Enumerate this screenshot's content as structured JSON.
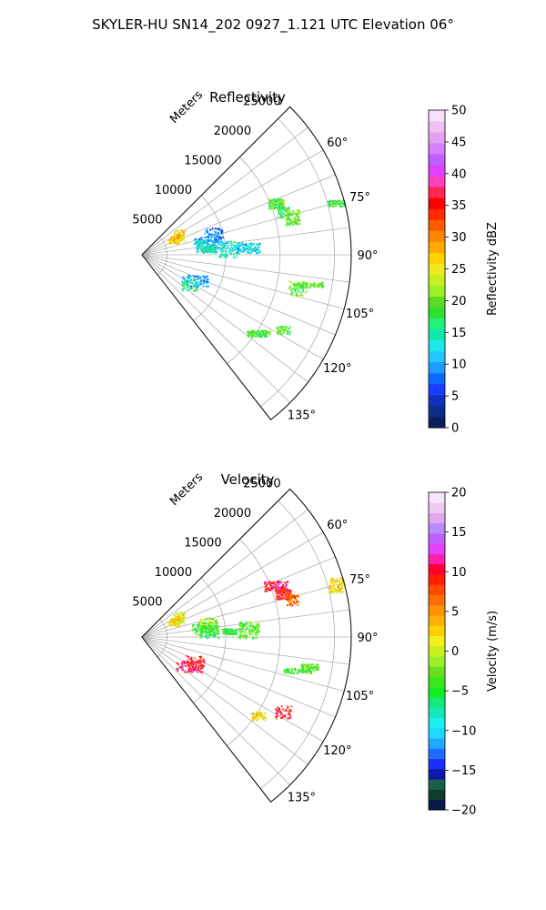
{
  "figure": {
    "suptitle": "SKYLER-HU  SN14_202  0927_1.121 UTC Elevation 06°"
  },
  "panels": {
    "common": {
      "range_unit_label": "Meters",
      "range_ticks": [
        5000,
        10000,
        15000,
        20000,
        25000
      ],
      "range_tick_labels": [
        "5000",
        "10000",
        "15000",
        "20000",
        "25000"
      ],
      "range_max": 25000,
      "azimuth_min": 45,
      "azimuth_max": 142,
      "azimuth_ticks": [
        60,
        75,
        90,
        105,
        120,
        135
      ],
      "azimuth_tick_labels": [
        "60°",
        "75°",
        "90°",
        "105°",
        "120°",
        "135°"
      ],
      "radial_gridlines_deg": [
        52.5,
        60,
        67.5,
        75,
        82.5,
        90,
        97.5,
        105,
        112.5,
        120,
        127.5,
        135
      ],
      "ring_gridlines": [
        3000,
        10000,
        16500,
        23000
      ]
    },
    "reflectivity": {
      "title": "Reflectivity",
      "colorbar_label": "Reflectivity dBZ",
      "colorbar_ticks": [
        "0",
        "5",
        "10",
        "15",
        "20",
        "25",
        "30",
        "35",
        "40",
        "45",
        "50"
      ],
      "vmin": 0,
      "vmax": 50
    },
    "velocity": {
      "title": "Velocity",
      "colorbar_label": "Velocity (m/s)",
      "colorbar_ticks": [
        "−20",
        "−15",
        "−10",
        "−5",
        "0",
        "5",
        "10",
        "15",
        "20"
      ],
      "vmin": -20,
      "vmax": 20
    }
  },
  "colors": {
    "refl_scale": [
      "#0b1f5c",
      "#0b2e86",
      "#0f2fbf",
      "#1a3cff",
      "#0a6cff",
      "#1f9cff",
      "#20c8ff",
      "#20e8e8",
      "#10e8b0",
      "#22f07a",
      "#30e030",
      "#58dd20",
      "#9bf026",
      "#c8f01e",
      "#f2e81e",
      "#ffd200",
      "#ffa800",
      "#ff8400",
      "#ff5a00",
      "#ff2a00",
      "#ff0000",
      "#ff2850",
      "#ff40c0",
      "#e040ff",
      "#c060ff",
      "#d880ff",
      "#e6a0f0",
      "#f0c0f0",
      "#f8e0f8"
    ],
    "vel_scale": [
      "#081a4a",
      "#0f3d2b",
      "#1b5e4a",
      "#0b18a8",
      "#1a30ff",
      "#1f6cff",
      "#20a8ff",
      "#1ed8ff",
      "#1af0f0",
      "#18e8b8",
      "#16e87a",
      "#10f020",
      "#38e818",
      "#68e020",
      "#9af028",
      "#c8f01e",
      "#f6ef1a",
      "#ffd000",
      "#ffb000",
      "#ff9200",
      "#ff6e00",
      "#ff4800",
      "#ff1e00",
      "#ff0030",
      "#ff20b0",
      "#e640ff",
      "#c060ff",
      "#b88cff",
      "#e0a8f0",
      "#f0c8f4",
      "#f8e4f8"
    ]
  },
  "chart_data": [
    {
      "type": "heatmap",
      "title": "Reflectivity",
      "coordinate_system": "polar sector (azimuth degrees, range meters)",
      "value_label": "Reflectivity dBZ",
      "vmin": 0,
      "vmax": 50,
      "azimuth_range": [
        45,
        142
      ],
      "range_max": 25000,
      "echo_clusters": [
        {
          "azimuth": 62,
          "range": 5000,
          "value": 26
        },
        {
          "azimuth": 64,
          "range": 4300,
          "value": 27
        },
        {
          "azimuth": 74,
          "range": 8800,
          "value": 8
        },
        {
          "azimuth": 79,
          "range": 7900,
          "value": 10
        },
        {
          "azimuth": 82,
          "range": 7600,
          "value": 13
        },
        {
          "azimuth": 85,
          "range": 8000,
          "value": 14
        },
        {
          "azimuth": 86,
          "range": 10400,
          "value": 14
        },
        {
          "azimuth": 86,
          "range": 12700,
          "value": 12
        },
        {
          "azimuth": 69,
          "range": 17100,
          "value": 19
        },
        {
          "azimuth": 73,
          "range": 17600,
          "value": 17
        },
        {
          "azimuth": 76,
          "range": 18500,
          "value": 20
        },
        {
          "azimuth": 75,
          "range": 24000,
          "value": 18
        },
        {
          "azimuth": 100,
          "range": 20300,
          "value": 20
        },
        {
          "azimuth": 102,
          "range": 19000,
          "value": 19
        },
        {
          "azimuth": 116,
          "range": 7000,
          "value": 10
        },
        {
          "azimuth": 122,
          "range": 6600,
          "value": 15
        },
        {
          "azimuth": 118,
          "range": 19000,
          "value": 19
        },
        {
          "azimuth": 124,
          "range": 16700,
          "value": 18
        }
      ]
    },
    {
      "type": "heatmap",
      "title": "Velocity",
      "coordinate_system": "polar sector (azimuth degrees, range meters)",
      "value_label": "Velocity (m/s)",
      "vmin": -20,
      "vmax": 20,
      "azimuth_range": [
        45,
        142
      ],
      "range_max": 25000,
      "echo_clusters": [
        {
          "azimuth": 62,
          "range": 5000,
          "value": 1
        },
        {
          "azimuth": 64,
          "range": 4300,
          "value": 2
        },
        {
          "azimuth": 79,
          "range": 7900,
          "value": -1
        },
        {
          "azimuth": 82,
          "range": 7600,
          "value": -4
        },
        {
          "azimuth": 85,
          "range": 8000,
          "value": -5
        },
        {
          "azimuth": 86,
          "range": 10400,
          "value": -5
        },
        {
          "azimuth": 86,
          "range": 12700,
          "value": -3
        },
        {
          "azimuth": 69,
          "range": 17100,
          "value": 10
        },
        {
          "azimuth": 73,
          "range": 17600,
          "value": 9
        },
        {
          "azimuth": 76,
          "range": 18500,
          "value": 6
        },
        {
          "azimuth": 75,
          "range": 24000,
          "value": 2
        },
        {
          "azimuth": 100,
          "range": 20300,
          "value": -3
        },
        {
          "azimuth": 102,
          "range": 19000,
          "value": -4
        },
        {
          "azimuth": 116,
          "range": 7000,
          "value": 9
        },
        {
          "azimuth": 122,
          "range": 6600,
          "value": 10
        },
        {
          "azimuth": 118,
          "range": 19000,
          "value": 9
        },
        {
          "azimuth": 124,
          "range": 16700,
          "value": 2
        }
      ]
    }
  ]
}
